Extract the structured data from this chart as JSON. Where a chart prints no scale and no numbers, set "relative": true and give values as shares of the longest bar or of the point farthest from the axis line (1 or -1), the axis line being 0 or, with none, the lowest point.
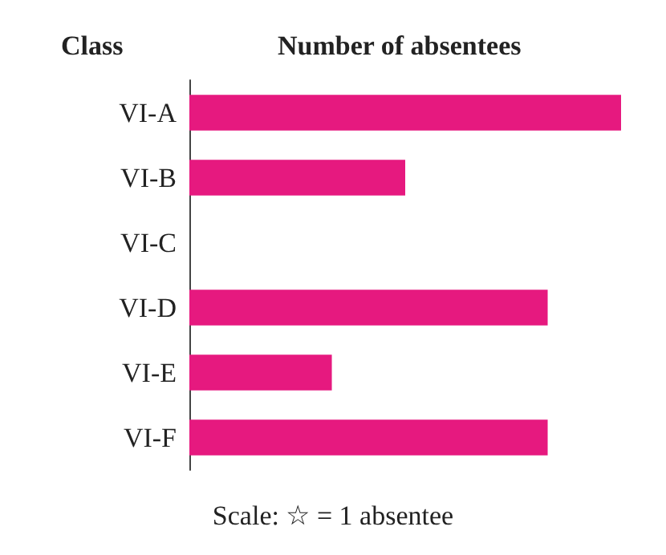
{
  "chart_data": {
    "type": "bar",
    "orientation": "horizontal",
    "relative": true,
    "ylabel": "Class",
    "xlabel": "Number of absentees",
    "categories": [
      "VI-A",
      "VI-B",
      "VI-C",
      "VI-D",
      "VI-E",
      "VI-F"
    ],
    "values": [
      1,
      0.5,
      0,
      0.83,
      0.33,
      0.83
    ],
    "color": "#e6197f",
    "annotations": [
      "Scale: ☆ = 1 absentee"
    ]
  }
}
